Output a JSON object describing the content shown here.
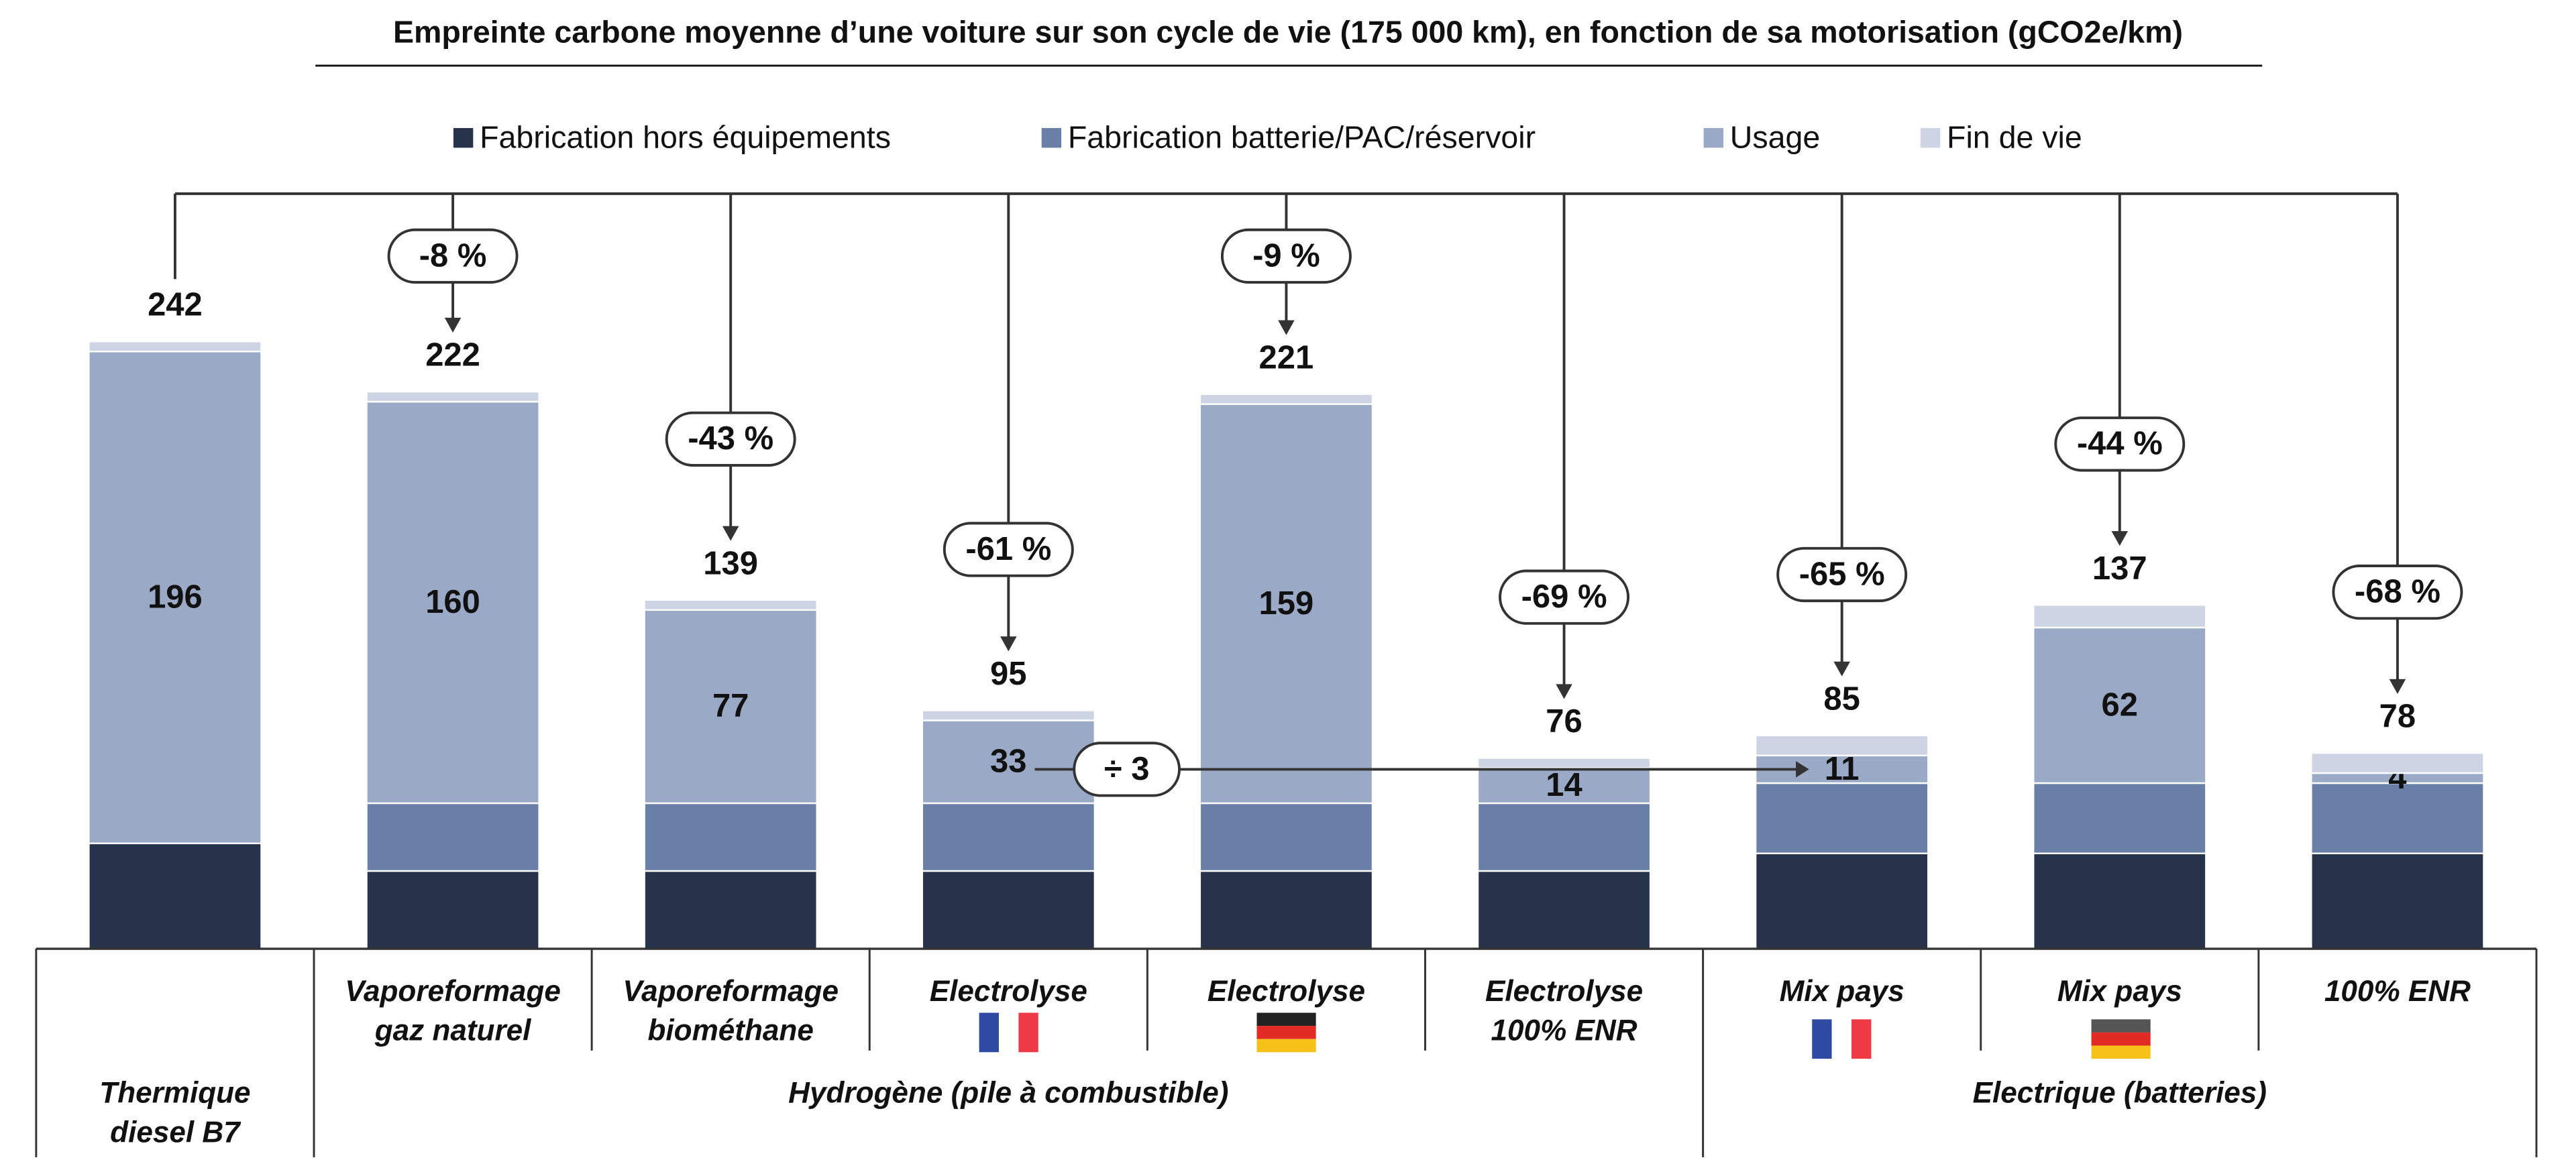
{
  "chart_data": {
    "type": "stacked_bar",
    "title": "Empreinte carbone moyenne d’une voiture sur son cycle de vie (175 000 km), en fonction de sa motorisation (gCO2e/km)",
    "categories": [
      [
        "Thermique",
        "diesel B7"
      ],
      [
        "Vaporeformage",
        "gaz naturel"
      ],
      [
        "Vaporeformage",
        "biométhane"
      ],
      [
        "Electrolyse"
      ],
      [
        "Electrolyse"
      ],
      [
        "Electrolyse",
        "100% ENR"
      ],
      [
        "Mix pays"
      ],
      [
        "Mix pays"
      ],
      [
        "100% ENR"
      ]
    ],
    "groups": [
      {
        "label": "Hydrogène (pile à combustible)",
        "span": 5
      },
      {
        "label": "Electrique (batteries)",
        "span": 3
      }
    ],
    "series": [
      {
        "name": "Fabrication hors équipements",
        "color": "#26334a",
        "values": [
          42,
          31,
          31,
          31,
          31,
          31,
          38,
          38,
          38
        ]
      },
      {
        "name": "Fabrication batterie/PAC/réservoir",
        "color": "#6a7fa8",
        "values": [
          0,
          27,
          27,
          27,
          27,
          27,
          28,
          28,
          28
        ]
      },
      {
        "name": "Usage",
        "color": "#9aa9c6",
        "values": [
          196,
          160,
          77,
          33,
          159,
          14,
          11,
          62,
          4
        ],
        "show_labels": true
      },
      {
        "name": "Fin de vie",
        "color": "#cdd5e4",
        "values": [
          4,
          4,
          4,
          4,
          4,
          4,
          8,
          9,
          8
        ]
      }
    ],
    "totals": [
      242,
      222,
      139,
      95,
      221,
      76,
      85,
      137,
      78
    ],
    "changes": {
      "values": [
        null,
        -8,
        -43,
        -61,
        -9,
        -69,
        -65,
        -44,
        -68
      ],
      "value_labels": [
        null,
        "-8 %",
        "-43 %",
        "-61 %",
        "-9 %",
        "-69 %",
        "-65 %",
        "-44 %",
        "-68 %"
      ],
      "colors": [
        null,
        "#e8474c",
        "#222222",
        "#222222",
        "#e8474c",
        "#222222",
        "#222222",
        "#222222",
        "#222222"
      ]
    },
    "division": {
      "label": "÷ 3",
      "from": 3,
      "to": 6
    },
    "legend": "top"
  }
}
